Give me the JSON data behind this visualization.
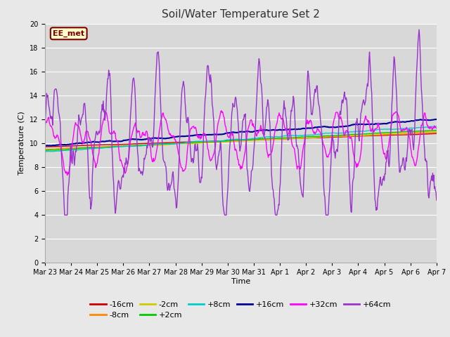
{
  "title": "Soil/Water Temperature Set 2",
  "xlabel": "Time",
  "ylabel": "Temperature (C)",
  "ylim": [
    0,
    20
  ],
  "background_color": "#e8e8e8",
  "plot_bg_color": "#d8d8d8",
  "annotation_text": "EE_met",
  "annotation_bg": "#ffffcc",
  "annotation_border": "#800000",
  "grid_color": "#ffffff",
  "series": {
    "-16cm": {
      "color": "#cc0000",
      "lw": 1.0
    },
    "-8cm": {
      "color": "#ff8800",
      "lw": 1.0
    },
    "-2cm": {
      "color": "#cccc00",
      "lw": 1.0
    },
    "+2cm": {
      "color": "#00cc00",
      "lw": 1.0
    },
    "+8cm": {
      "color": "#00cccc",
      "lw": 1.0
    },
    "+16cm": {
      "color": "#000099",
      "lw": 1.5
    },
    "+32cm": {
      "color": "#ff00ff",
      "lw": 1.0
    },
    "+64cm": {
      "color": "#9933cc",
      "lw": 1.0
    }
  },
  "tick_labels": [
    "Mar 23",
    "Mar 24",
    "Mar 25",
    "Mar 26",
    "Mar 27",
    "Mar 28",
    "Mar 29",
    "Mar 30",
    "Mar 31",
    "Apr 1",
    "Apr 2",
    "Apr 3",
    "Apr 4",
    "Apr 5",
    "Apr 6",
    "Apr 7"
  ]
}
